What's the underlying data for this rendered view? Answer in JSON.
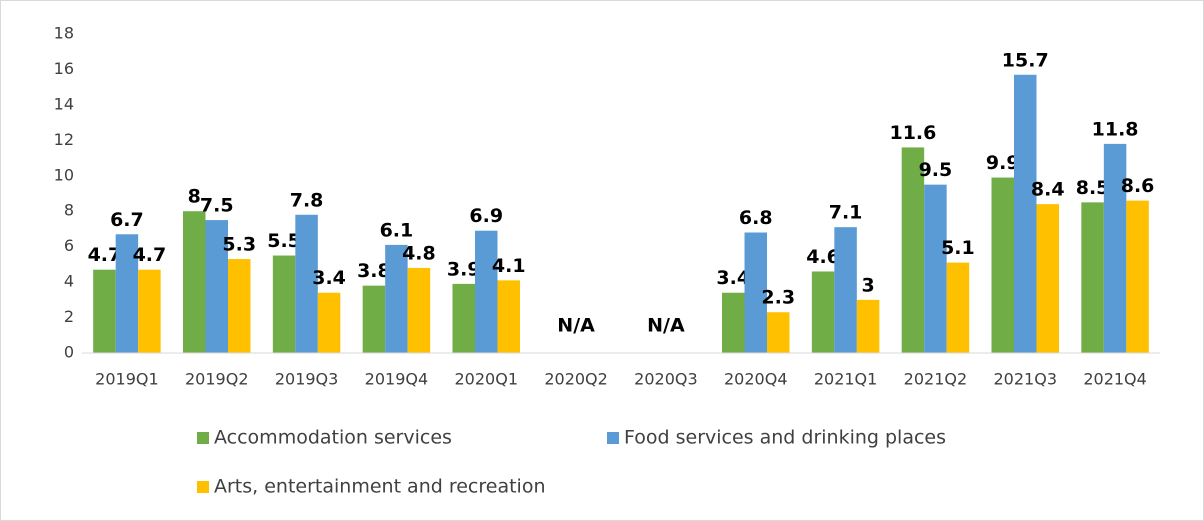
{
  "chart_data": {
    "type": "bar",
    "categories": [
      "2019Q1",
      "2019Q2",
      "2019Q3",
      "2019Q4",
      "2020Q1",
      "2020Q2",
      "2020Q3",
      "2020Q4",
      "2021Q1",
      "2021Q2",
      "2021Q3",
      "2021Q4"
    ],
    "series": [
      {
        "name": "Accommodation services",
        "color": "#70ad47",
        "values": [
          4.7,
          8,
          5.5,
          3.8,
          3.9,
          null,
          null,
          3.4,
          4.6,
          11.6,
          9.9,
          8.5
        ]
      },
      {
        "name": "Food services and drinking places",
        "color": "#5b9bd5",
        "values": [
          6.7,
          7.5,
          7.8,
          6.1,
          6.9,
          null,
          null,
          6.8,
          7.1,
          9.5,
          15.7,
          11.8
        ],
        "value_labels": [
          "6.7",
          "7.5",
          "7.8",
          "6.1",
          "6.9",
          "N/A",
          "N/A",
          "6.8",
          "7.1",
          "9.5",
          "15.7",
          "11.8"
        ]
      },
      {
        "name": "Arts, entertainment and recreation",
        "color": "#ffc000",
        "values": [
          4.7,
          5.3,
          3.4,
          4.8,
          4.1,
          null,
          null,
          2.3,
          3,
          5.1,
          8.4,
          8.6
        ]
      }
    ],
    "ylim": [
      0,
      18
    ],
    "yticks": [
      0,
      2,
      4,
      6,
      8,
      10,
      12,
      14,
      16,
      18
    ],
    "grid": false,
    "legend": "bottom"
  }
}
